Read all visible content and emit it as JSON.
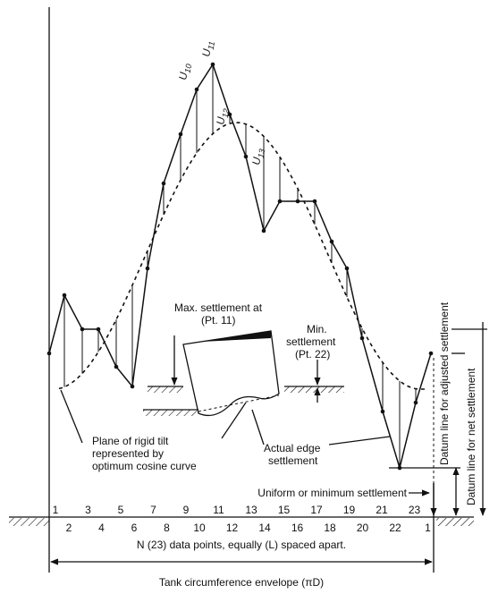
{
  "labels": {
    "u10": {
      "letter": "U",
      "sub": "10"
    },
    "u11": {
      "letter": "U",
      "sub": "11"
    },
    "u12": {
      "letter": "U",
      "sub": "12"
    },
    "u13": {
      "letter": "U",
      "sub": "13"
    }
  },
  "point_numbers": {
    "upper": [
      "1",
      "3",
      "5",
      "7",
      "9",
      "11",
      "13",
      "15",
      "17",
      "19",
      "21",
      "23"
    ],
    "lower": [
      "2",
      "4",
      "6",
      "8",
      "10",
      "12",
      "14",
      "16",
      "18",
      "20",
      "22",
      "1"
    ]
  },
  "annotations": {
    "max_1": "Max. settlement at",
    "max_2": "(Pt. 11)",
    "min_1": "Min.",
    "min_2": "settlement",
    "min_3": "(Pt. 22)",
    "plane_1": "Plane of rigid tilt",
    "plane_2": "represented by",
    "plane_3": "optimum cosine curve",
    "edge_1": "Actual edge",
    "edge_2": "settlement",
    "uniform": "Uniform or minimum settlement",
    "datum_adjusted": "Datum line for adjusted settlement",
    "datum_net": "Datum line for net settlement",
    "spacing": "N (23) data points, equally (L) spaced apart.",
    "envelope": "Tank circumference envelope (πD)"
  }
}
